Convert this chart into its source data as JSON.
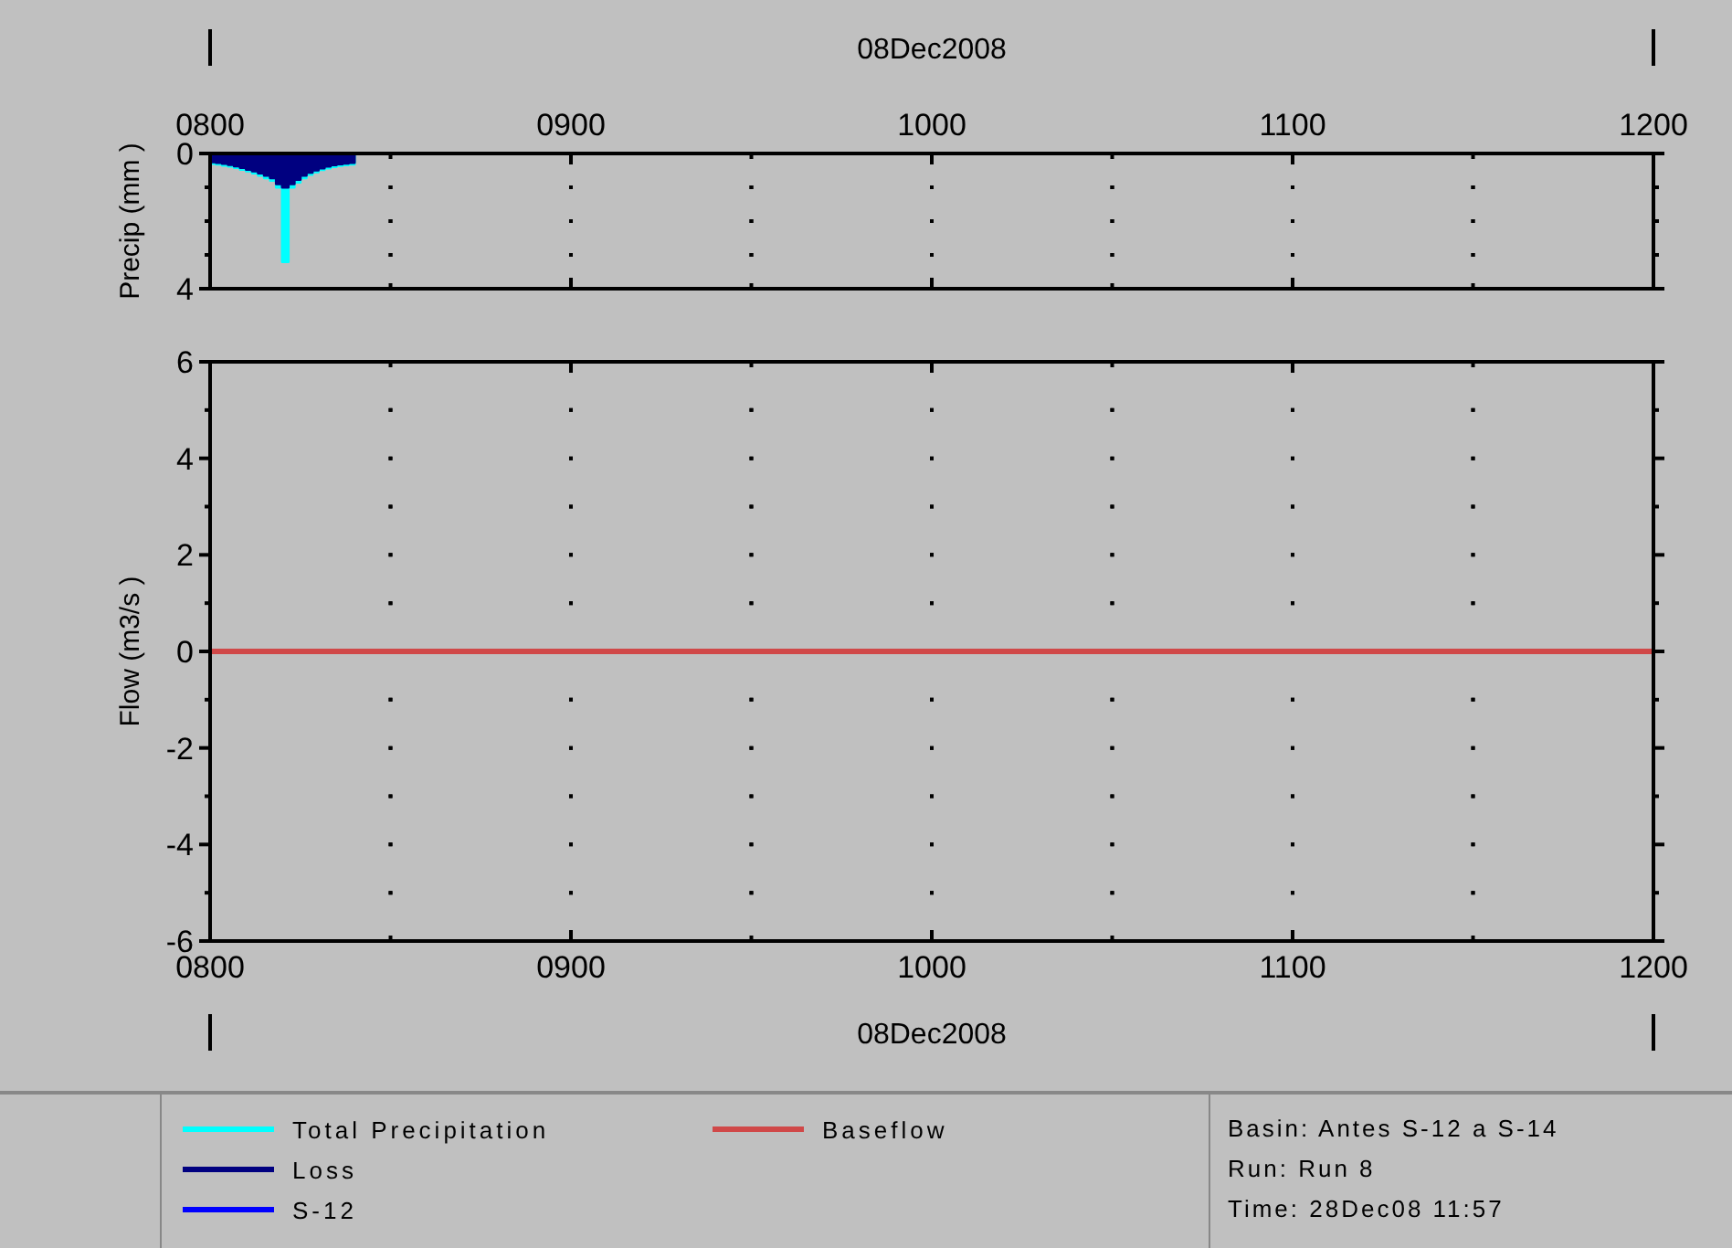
{
  "chart_data": [
    {
      "type": "area",
      "ylabel": "Precip (mm   )",
      "xlabel": "08Dec2008",
      "xlim": [
        "2008-12-08T08:00",
        "2008-12-08T12:00"
      ],
      "xticks": [
        {
          "value": "2008-12-08T08:00",
          "label": "0800"
        },
        {
          "value": "2008-12-08T08:30",
          "label": null
        },
        {
          "value": "2008-12-08T09:00",
          "label": "0900"
        },
        {
          "value": "2008-12-08T09:30",
          "label": null
        },
        {
          "value": "2008-12-08T10:00",
          "label": "1000"
        },
        {
          "value": "2008-12-08T10:30",
          "label": null
        },
        {
          "value": "2008-12-08T11:00",
          "label": "1100"
        },
        {
          "value": "2008-12-08T11:30",
          "label": null
        },
        {
          "value": "2008-12-08T12:00",
          "label": "1200"
        }
      ],
      "ylim": [
        4,
        0
      ],
      "yticks": [
        0,
        {
          "value": 1,
          "label": null
        },
        {
          "value": 2,
          "label": null
        },
        {
          "value": 3,
          "label": null
        },
        4
      ],
      "grid": true,
      "legend": "bottom",
      "x": [
        "2008-12-08T08:00",
        "2008-12-08T08:01",
        "2008-12-08T08:02",
        "2008-12-08T08:03",
        "2008-12-08T08:04",
        "2008-12-08T08:05",
        "2008-12-08T08:06",
        "2008-12-08T08:07",
        "2008-12-08T08:08",
        "2008-12-08T08:09",
        "2008-12-08T08:10",
        "2008-12-08T08:11",
        "2008-12-08T08:12",
        "2008-12-08T08:13",
        "2008-12-08T08:14",
        "2008-12-08T08:15",
        "2008-12-08T08:16",
        "2008-12-08T08:17",
        "2008-12-08T08:18",
        "2008-12-08T08:19",
        "2008-12-08T08:20",
        "2008-12-08T08:21",
        "2008-12-08T08:22",
        "2008-12-08T08:23",
        "2008-12-08T08:24"
      ],
      "series": [
        {
          "name": "Total Precipitation",
          "color": "#00ffff",
          "values": [
            0.3,
            0.32,
            0.35,
            0.38,
            0.42,
            0.47,
            0.52,
            0.58,
            0.65,
            0.72,
            0.8,
            1,
            3.2,
            1,
            0.85,
            0.72,
            0.62,
            0.55,
            0.48,
            0.43,
            0.39,
            0.36,
            0.34,
            0.32,
            0.3
          ]
        },
        {
          "name": "Loss",
          "color": "#000080",
          "values": [
            0.25,
            0.27,
            0.3,
            0.33,
            0.37,
            0.42,
            0.47,
            0.52,
            0.58,
            0.65,
            0.72,
            0.9,
            1,
            0.9,
            0.77,
            0.65,
            0.56,
            0.49,
            0.43,
            0.38,
            0.34,
            0.31,
            0.29,
            0.27,
            0.25
          ]
        }
      ]
    },
    {
      "type": "line",
      "ylabel": "Flow (m3/s    )",
      "xlabel": "08Dec2008",
      "xlim": [
        "2008-12-08T08:00",
        "2008-12-08T12:00"
      ],
      "xticks": [
        {
          "value": "2008-12-08T08:00",
          "label": "0800"
        },
        {
          "value": "2008-12-08T08:30",
          "label": null
        },
        {
          "value": "2008-12-08T09:00",
          "label": "0900"
        },
        {
          "value": "2008-12-08T09:30",
          "label": null
        },
        {
          "value": "2008-12-08T10:00",
          "label": "1000"
        },
        {
          "value": "2008-12-08T10:30",
          "label": null
        },
        {
          "value": "2008-12-08T11:00",
          "label": "1100"
        },
        {
          "value": "2008-12-08T11:30",
          "label": null
        },
        {
          "value": "2008-12-08T12:00",
          "label": "1200"
        }
      ],
      "ylim": [
        -6,
        6
      ],
      "yticks": [
        -6,
        {
          "value": -5,
          "label": null
        },
        -4,
        {
          "value": -3,
          "label": null
        },
        -2,
        {
          "value": -1,
          "label": null
        },
        0,
        {
          "value": 1,
          "label": null
        },
        2,
        {
          "value": 3,
          "label": null
        },
        4,
        {
          "value": 5,
          "label": null
        },
        6
      ],
      "grid": true,
      "legend": "bottom",
      "x": [
        "2008-12-08T08:00",
        "2008-12-08T12:00"
      ],
      "series": [
        {
          "name": "S-12",
          "color": "#0000ff",
          "values": [
            null,
            null
          ]
        },
        {
          "name": "Baseflow",
          "color": "#d04848",
          "values": [
            0,
            0
          ]
        }
      ],
      "annotations": [
        "Basin:  Antes S-12 a S-14",
        "Run:   Run 8",
        "Time:   28Dec08   11:57"
      ]
    }
  ]
}
